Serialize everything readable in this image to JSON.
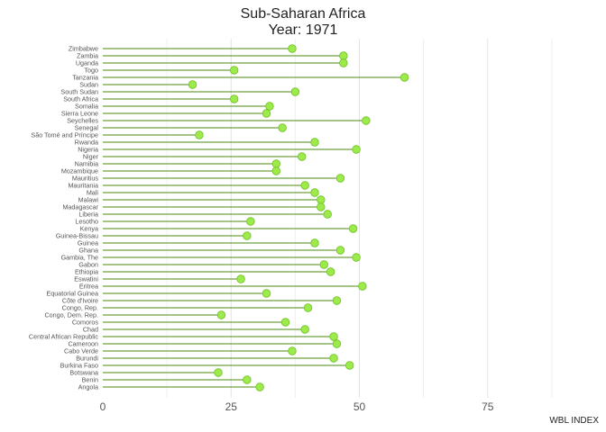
{
  "chart_data": {
    "type": "lollipop",
    "title": "Sub-Saharan Africa",
    "subtitle": "Year: 1971",
    "xlabel": "WBL INDEX",
    "ylabel": "",
    "xlim": [
      0,
      100
    ],
    "x_ticks": [
      0,
      25,
      50,
      75
    ],
    "grid": "vertical",
    "legend": "none",
    "line_color": "#4a8a12",
    "marker_color": "#9ceb4a",
    "marker_edge_color": "#6fbf26",
    "categories": [
      "Zimbabwe",
      "Zambia",
      "Uganda",
      "Togo",
      "Tanzania",
      "Sudan",
      "South Sudan",
      "South Africa",
      "Somalia",
      "Sierra Leone",
      "Seychelles",
      "Senegal",
      "São Tomé and Príncipe",
      "Rwanda",
      "Nigeria",
      "Niger",
      "Namibia",
      "Mozambique",
      "Mauritius",
      "Mauritania",
      "Mali",
      "Malawi",
      "Madagascar",
      "Liberia",
      "Lesotho",
      "Kenya",
      "Guinea-Bissau",
      "Guinea",
      "Ghana",
      "Gambia, The",
      "Gabon",
      "Ethiopia",
      "Eswatini",
      "Eritrea",
      "Equatorial Guinea",
      "Côte d'Ivoire",
      "Congo, Rep.",
      "Congo, Dem. Rep.",
      "Comoros",
      "Chad",
      "Central African Republic",
      "Cameroon",
      "Cabo Verde",
      "Burundi",
      "Burkina Faso",
      "Botswana",
      "Benin",
      "Angola"
    ],
    "values": [
      36.9,
      46.9,
      46.9,
      25.6,
      58.8,
      17.5,
      37.5,
      25.6,
      32.5,
      31.9,
      51.3,
      35.0,
      18.8,
      41.3,
      49.4,
      38.8,
      33.8,
      33.8,
      46.3,
      39.4,
      41.3,
      42.5,
      42.5,
      43.8,
      28.8,
      48.8,
      28.1,
      41.3,
      46.3,
      49.4,
      43.1,
      44.4,
      26.9,
      50.6,
      31.9,
      45.6,
      40.0,
      23.1,
      35.6,
      39.4,
      45.0,
      45.6,
      36.9,
      45.0,
      48.1,
      22.5,
      28.1,
      30.6
    ]
  }
}
